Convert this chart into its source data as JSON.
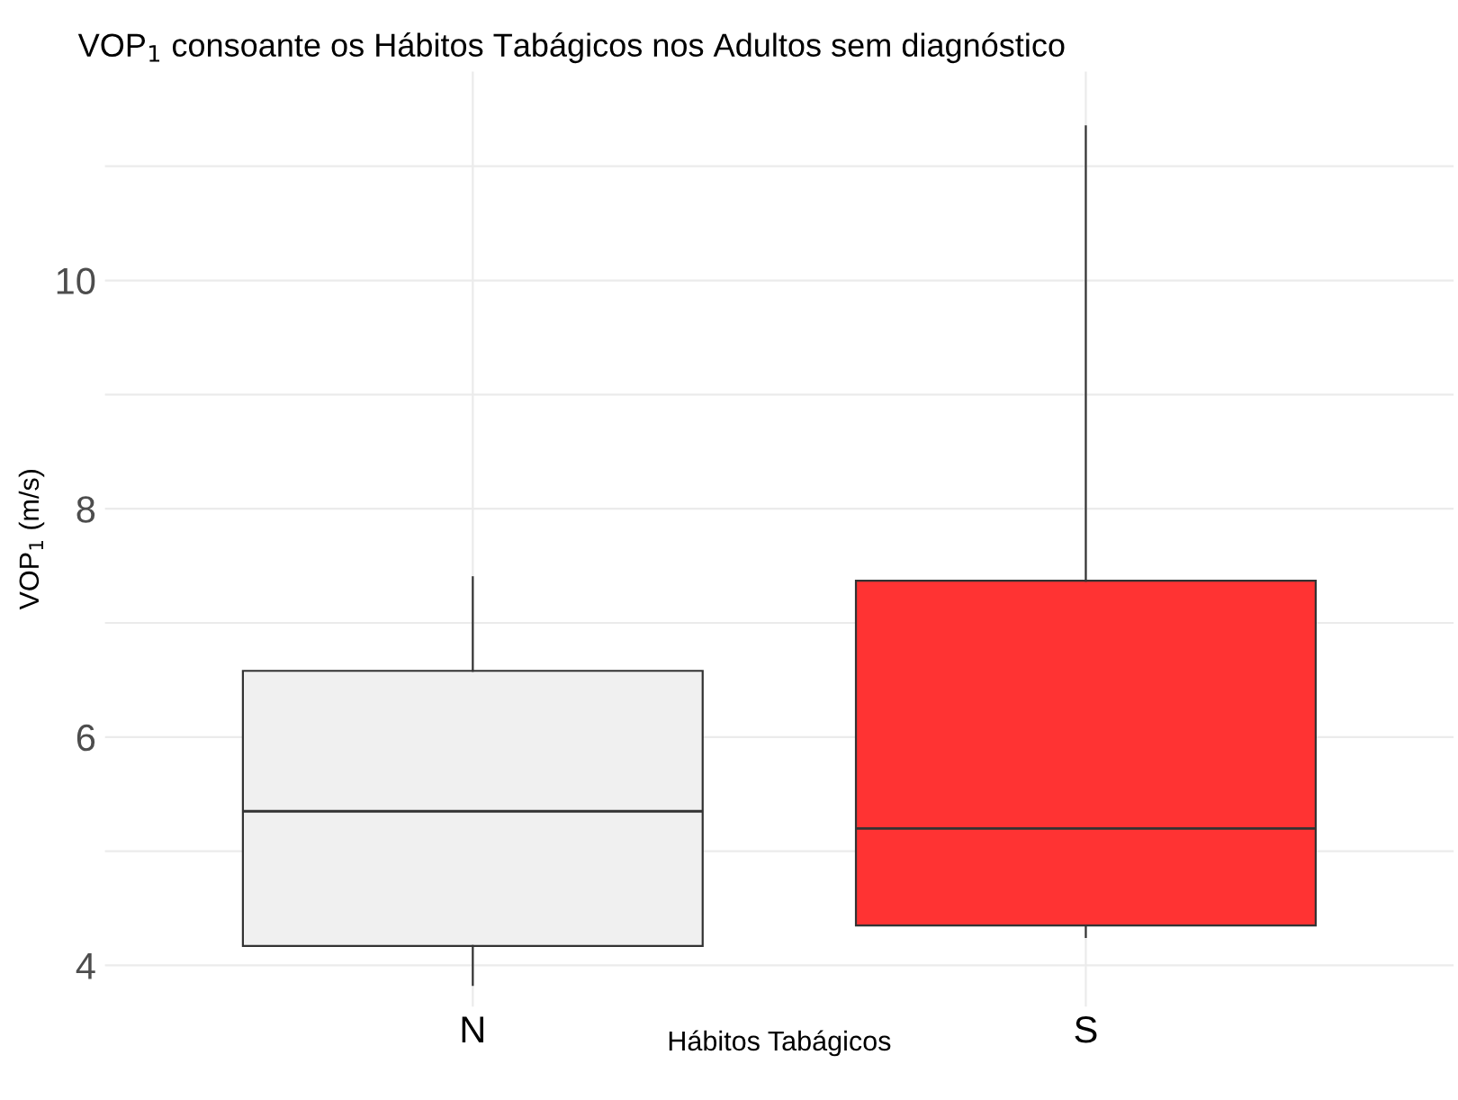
{
  "chart_data": {
    "type": "box",
    "title": "VOP$_{1}$ consoante os Hábitos Tabágicos nos Adultos sem diagnóstico",
    "xlabel": "Hábitos Tabágicos",
    "ylabel": "VOP$_{1}$ (m/s)",
    "categories": [
      "N",
      "S"
    ],
    "colors": [
      "#f0f0f0",
      "#ff3333"
    ],
    "boxes": [
      {
        "low": 3.83,
        "q1": 4.17,
        "median": 5.35,
        "q3": 6.58,
        "high": 7.4
      },
      {
        "low": 4.25,
        "q1": 4.35,
        "median": 5.2,
        "q3": 7.37,
        "high": 11.35
      }
    ],
    "ylim": [
      3.64,
      11.83
    ],
    "yticks": [
      4,
      {
        "value": 5,
        "label": null
      },
      6,
      {
        "value": 7,
        "label": null
      },
      8,
      {
        "value": 9,
        "label": null
      },
      10,
      {
        "value": 11,
        "label": null
      }
    ],
    "grid": true,
    "legend": false
  }
}
